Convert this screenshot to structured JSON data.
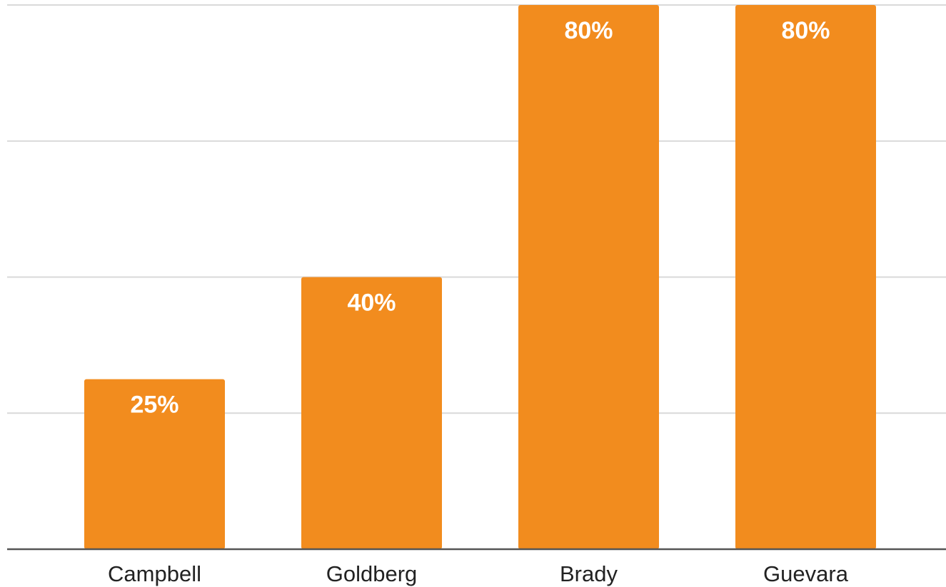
{
  "chart_data": {
    "type": "bar",
    "categories": [
      "Campbell",
      "Goldberg",
      "Brady",
      "Guevara"
    ],
    "values": [
      25,
      40,
      80,
      80
    ],
    "data_labels": [
      "25%",
      "40%",
      "80%",
      "80%"
    ],
    "unit": "%",
    "title": "",
    "xlabel": "",
    "ylabel": "",
    "ylim": [
      0,
      80
    ],
    "grid": true,
    "legend": "none",
    "bar_color": "#f28c1e"
  }
}
